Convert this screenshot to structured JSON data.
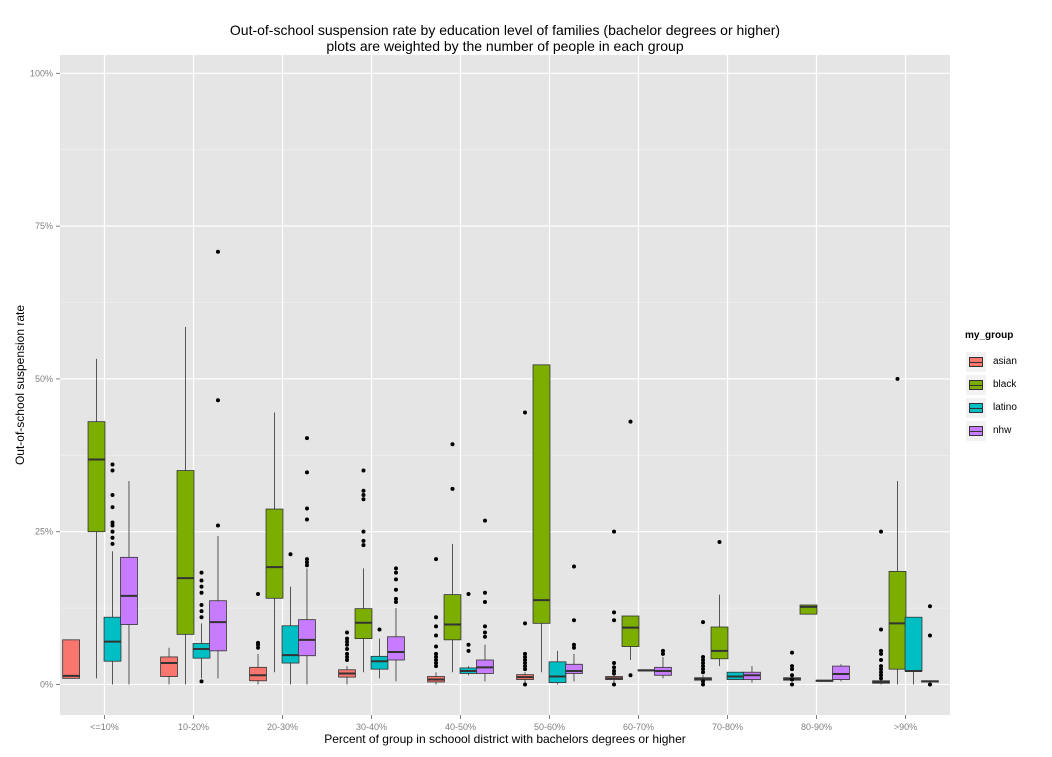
{
  "chart_data": {
    "type": "boxplot",
    "title": "Out-of-school suspension rate by education level of families (bachelor degrees or higher)",
    "subtitle": "plots are weighted by the number of people in each group",
    "xlabel": "Percent of group in schoool district with bachelors degrees or higher",
    "ylabel": "Out-of-school suspension rate",
    "ylim": [
      -0.05,
      1.03
    ],
    "y_ticks": [
      {
        "value": 0,
        "label": "0%"
      },
      {
        "value": 0.25,
        "label": "25%"
      },
      {
        "value": 0.5,
        "label": "50%"
      },
      {
        "value": 0.75,
        "label": "75%"
      },
      {
        "value": 1.0,
        "label": "100%"
      }
    ],
    "categories": [
      "<=10%",
      "10-20%",
      "20-30%",
      "30-40%",
      "40-50%",
      "50-60%",
      "60-70%",
      "70-80%",
      "80-90%",
      ">90%"
    ],
    "legend": {
      "title": "my_group",
      "items": [
        {
          "name": "asian",
          "color": "#F8766D"
        },
        {
          "name": "black",
          "color": "#7CAE00"
        },
        {
          "name": "latino",
          "color": "#00BFC4"
        },
        {
          "name": "nhw",
          "color": "#C77CFF"
        }
      ]
    },
    "boxes": [
      {
        "cat": 0,
        "group": 0,
        "offset": -0.375,
        "width": 0.19,
        "q1": 0.01,
        "median": 0.014,
        "q3": 0.073,
        "lo": 0.01,
        "hi": 0.073,
        "outliers": []
      },
      {
        "cat": 0,
        "group": 1,
        "offset": -0.09,
        "width": 0.19,
        "q1": 0.25,
        "median": 0.368,
        "q3": 0.43,
        "lo": 0.01,
        "hi": 0.533,
        "outliers": []
      },
      {
        "cat": 0,
        "group": 2,
        "offset": 0.09,
        "width": 0.19,
        "q1": 0.038,
        "median": 0.07,
        "q3": 0.11,
        "lo": 0.0,
        "hi": 0.218,
        "outliers": [
          0.36,
          0.35,
          0.31,
          0.29,
          0.265,
          0.26,
          0.25,
          0.24,
          0.23
        ]
      },
      {
        "cat": 0,
        "group": 3,
        "offset": 0.275,
        "width": 0.19,
        "q1": 0.098,
        "median": 0.145,
        "q3": 0.208,
        "lo": 0.0,
        "hi": 0.333,
        "outliers": []
      },
      {
        "cat": 1,
        "group": 0,
        "offset": -0.275,
        "width": 0.19,
        "q1": 0.013,
        "median": 0.035,
        "q3": 0.045,
        "lo": 0.0,
        "hi": 0.06,
        "outliers": []
      },
      {
        "cat": 1,
        "group": 1,
        "offset": -0.09,
        "width": 0.19,
        "q1": 0.082,
        "median": 0.174,
        "q3": 0.35,
        "lo": 0.0,
        "hi": 0.585,
        "outliers": []
      },
      {
        "cat": 1,
        "group": 2,
        "offset": 0.09,
        "width": 0.19,
        "q1": 0.043,
        "median": 0.058,
        "q3": 0.067,
        "lo": 0.01,
        "hi": 0.1,
        "outliers": [
          0.183,
          0.17,
          0.16,
          0.15,
          0.13,
          0.12,
          0.11,
          0.005
        ]
      },
      {
        "cat": 1,
        "group": 3,
        "offset": 0.275,
        "width": 0.19,
        "q1": 0.055,
        "median": 0.102,
        "q3": 0.137,
        "lo": 0.01,
        "hi": 0.243,
        "outliers": [
          0.708,
          0.465,
          0.26
        ]
      },
      {
        "cat": 2,
        "group": 0,
        "offset": -0.275,
        "width": 0.19,
        "q1": 0.006,
        "median": 0.015,
        "q3": 0.028,
        "lo": 0.0,
        "hi": 0.05,
        "outliers": [
          0.148,
          0.068,
          0.065,
          0.06
        ]
      },
      {
        "cat": 2,
        "group": 1,
        "offset": -0.09,
        "width": 0.19,
        "q1": 0.141,
        "median": 0.192,
        "q3": 0.287,
        "lo": 0.02,
        "hi": 0.445,
        "outliers": []
      },
      {
        "cat": 2,
        "group": 2,
        "offset": 0.09,
        "width": 0.19,
        "q1": 0.035,
        "median": 0.048,
        "q3": 0.096,
        "lo": 0.0,
        "hi": 0.16,
        "outliers": [
          0.213
        ]
      },
      {
        "cat": 2,
        "group": 3,
        "offset": 0.275,
        "width": 0.19,
        "q1": 0.047,
        "median": 0.073,
        "q3": 0.106,
        "lo": 0.0,
        "hi": 0.19,
        "outliers": [
          0.403,
          0.347,
          0.288,
          0.27,
          0.205,
          0.2,
          0.195
        ]
      },
      {
        "cat": 3,
        "group": 0,
        "offset": -0.275,
        "width": 0.19,
        "q1": 0.012,
        "median": 0.018,
        "q3": 0.024,
        "lo": 0.0,
        "hi": 0.03,
        "outliers": [
          0.085,
          0.075,
          0.07,
          0.065,
          0.058,
          0.05,
          0.045,
          0.04
        ]
      },
      {
        "cat": 3,
        "group": 1,
        "offset": -0.09,
        "width": 0.19,
        "q1": 0.075,
        "median": 0.101,
        "q3": 0.124,
        "lo": 0.02,
        "hi": 0.19,
        "outliers": [
          0.35,
          0.317,
          0.31,
          0.303,
          0.25,
          0.235,
          0.228
        ]
      },
      {
        "cat": 3,
        "group": 2,
        "offset": 0.09,
        "width": 0.19,
        "q1": 0.025,
        "median": 0.038,
        "q3": 0.046,
        "lo": 0.01,
        "hi": 0.075,
        "outliers": [
          0.09
        ]
      },
      {
        "cat": 3,
        "group": 3,
        "offset": 0.275,
        "width": 0.19,
        "q1": 0.04,
        "median": 0.053,
        "q3": 0.078,
        "lo": 0.005,
        "hi": 0.125,
        "outliers": [
          0.19,
          0.183,
          0.172,
          0.155,
          0.14,
          0.135
        ]
      },
      {
        "cat": 4,
        "group": 0,
        "offset": -0.275,
        "width": 0.19,
        "q1": 0.004,
        "median": 0.008,
        "q3": 0.013,
        "lo": 0.0,
        "hi": 0.02,
        "outliers": [
          0.205,
          0.11,
          0.095,
          0.08,
          0.062,
          0.05,
          0.045,
          0.04,
          0.035,
          0.03
        ]
      },
      {
        "cat": 4,
        "group": 1,
        "offset": -0.09,
        "width": 0.19,
        "q1": 0.073,
        "median": 0.098,
        "q3": 0.147,
        "lo": 0.02,
        "hi": 0.23,
        "outliers": [
          0.393,
          0.32
        ]
      },
      {
        "cat": 4,
        "group": 2,
        "offset": 0.09,
        "width": 0.19,
        "q1": 0.018,
        "median": 0.022,
        "q3": 0.027,
        "lo": 0.015,
        "hi": 0.03,
        "outliers": [
          0.065,
          0.055,
          0.148
        ]
      },
      {
        "cat": 4,
        "group": 3,
        "offset": 0.275,
        "width": 0.19,
        "q1": 0.018,
        "median": 0.028,
        "q3": 0.04,
        "lo": 0.005,
        "hi": 0.065,
        "outliers": [
          0.268,
          0.15,
          0.135,
          0.095,
          0.085,
          0.078
        ]
      },
      {
        "cat": 5,
        "group": 0,
        "offset": -0.275,
        "width": 0.19,
        "q1": 0.008,
        "median": 0.012,
        "q3": 0.016,
        "lo": 0.0,
        "hi": 0.02,
        "outliers": [
          0.445,
          0.1,
          0.05,
          0.045,
          0.04,
          0.035,
          0.03,
          0.025,
          0.0
        ]
      },
      {
        "cat": 5,
        "group": 1,
        "offset": -0.09,
        "width": 0.19,
        "q1": 0.1,
        "median": 0.138,
        "q3": 0.523,
        "lo": 0.02,
        "hi": 0.523,
        "outliers": []
      },
      {
        "cat": 5,
        "group": 2,
        "offset": 0.09,
        "width": 0.19,
        "q1": 0.003,
        "median": 0.013,
        "q3": 0.037,
        "lo": 0.0,
        "hi": 0.055,
        "outliers": []
      },
      {
        "cat": 5,
        "group": 3,
        "offset": 0.275,
        "width": 0.19,
        "q1": 0.018,
        "median": 0.022,
        "q3": 0.033,
        "lo": 0.005,
        "hi": 0.05,
        "outliers": [
          0.193,
          0.105,
          0.065,
          0.06
        ]
      },
      {
        "cat": 6,
        "group": 0,
        "offset": -0.275,
        "width": 0.19,
        "q1": 0.008,
        "median": 0.01,
        "q3": 0.013,
        "lo": 0.0,
        "hi": 0.018,
        "outliers": [
          0.25,
          0.118,
          0.105,
          0.035,
          0.028,
          0.022,
          0.018,
          0.0
        ]
      },
      {
        "cat": 6,
        "group": 1,
        "offset": -0.09,
        "width": 0.19,
        "q1": 0.062,
        "median": 0.093,
        "q3": 0.112,
        "lo": 0.04,
        "hi": 0.112,
        "outliers": [
          0.43,
          0.015
        ]
      },
      {
        "cat": 6,
        "group": 2,
        "offset": 0.09,
        "width": 0.19,
        "q1": 0.022,
        "median": 0.023,
        "q3": 0.024,
        "lo": 0.022,
        "hi": 0.024,
        "outliers": []
      },
      {
        "cat": 6,
        "group": 3,
        "offset": 0.275,
        "width": 0.19,
        "q1": 0.015,
        "median": 0.022,
        "q3": 0.028,
        "lo": 0.01,
        "hi": 0.045,
        "outliers": [
          0.055,
          0.05
        ]
      },
      {
        "cat": 7,
        "group": 0,
        "offset": -0.275,
        "width": 0.19,
        "q1": 0.007,
        "median": 0.009,
        "q3": 0.011,
        "lo": 0.0,
        "hi": 0.015,
        "outliers": [
          0.102,
          0.045,
          0.04,
          0.035,
          0.03,
          0.025,
          0.02,
          0.005,
          0.0
        ]
      },
      {
        "cat": 7,
        "group": 1,
        "offset": -0.09,
        "width": 0.19,
        "q1": 0.042,
        "median": 0.055,
        "q3": 0.094,
        "lo": 0.03,
        "hi": 0.147,
        "outliers": [
          0.233
        ]
      },
      {
        "cat": 7,
        "group": 2,
        "offset": 0.09,
        "width": 0.19,
        "q1": 0.008,
        "median": 0.013,
        "q3": 0.02,
        "lo": 0.008,
        "hi": 0.02,
        "outliers": []
      },
      {
        "cat": 7,
        "group": 3,
        "offset": 0.275,
        "width": 0.19,
        "q1": 0.008,
        "median": 0.015,
        "q3": 0.02,
        "lo": 0.003,
        "hi": 0.03,
        "outliers": []
      },
      {
        "cat": 8,
        "group": 0,
        "offset": -0.275,
        "width": 0.19,
        "q1": 0.007,
        "median": 0.009,
        "q3": 0.011,
        "lo": 0.005,
        "hi": 0.013,
        "outliers": [
          0.052,
          0.03,
          0.025,
          0.015,
          0.008,
          0.0
        ]
      },
      {
        "cat": 8,
        "group": 1,
        "offset": -0.09,
        "width": 0.19,
        "q1": 0.115,
        "median": 0.127,
        "q3": 0.13,
        "lo": 0.115,
        "hi": 0.13,
        "outliers": []
      },
      {
        "cat": 8,
        "group": 2,
        "offset": 0.09,
        "width": 0.19,
        "q1": 0.006,
        "median": 0.006,
        "q3": 0.007,
        "lo": 0.006,
        "hi": 0.007,
        "outliers": []
      },
      {
        "cat": 8,
        "group": 3,
        "offset": 0.275,
        "width": 0.19,
        "q1": 0.008,
        "median": 0.017,
        "q3": 0.03,
        "lo": 0.005,
        "hi": 0.033,
        "outliers": []
      },
      {
        "cat": 9,
        "group": 0,
        "offset": -0.275,
        "width": 0.19,
        "q1": 0.002,
        "median": 0.004,
        "q3": 0.006,
        "lo": 0.0,
        "hi": 0.008,
        "outliers": [
          0.25,
          0.09,
          0.055,
          0.05,
          0.04,
          0.03,
          0.025,
          0.02,
          0.015,
          0.01
        ]
      },
      {
        "cat": 9,
        "group": 1,
        "offset": -0.09,
        "width": 0.19,
        "q1": 0.025,
        "median": 0.1,
        "q3": 0.185,
        "lo": 0.0,
        "hi": 0.333,
        "outliers": [
          0.5
        ]
      },
      {
        "cat": 9,
        "group": 2,
        "offset": 0.09,
        "width": 0.19,
        "q1": 0.022,
        "median": 0.022,
        "q3": 0.11,
        "lo": 0.0,
        "hi": 0.11,
        "outliers": []
      },
      {
        "cat": 9,
        "group": 3,
        "offset": 0.275,
        "width": 0.19,
        "q1": 0.004,
        "median": 0.005,
        "q3": 0.006,
        "lo": 0.004,
        "hi": 0.006,
        "outliers": [
          0.128,
          0.08,
          0.0
        ]
      }
    ]
  }
}
